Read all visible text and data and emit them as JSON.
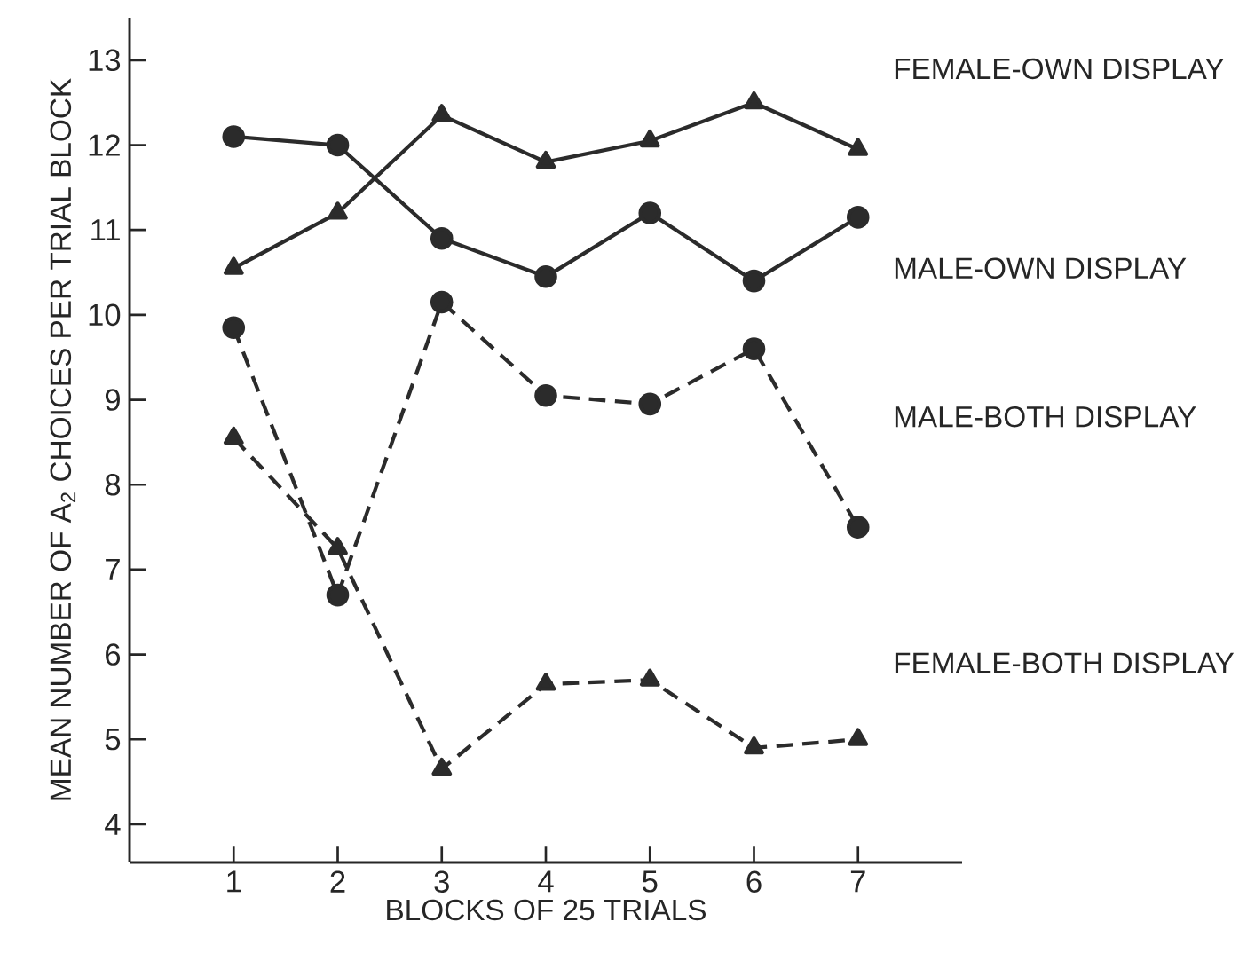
{
  "chart_data": {
    "type": "line",
    "xlabel": "BLOCKS OF 25 TRIALS",
    "ylabel": "MEAN NUMBER OF A$_{2}$ CHOICES PER TRIAL BLOCK",
    "x": [
      1,
      2,
      3,
      4,
      5,
      6,
      7
    ],
    "xlim": [
      0,
      8
    ],
    "xticks": [
      1,
      2,
      3,
      4,
      5,
      6,
      7
    ],
    "ylim": [
      3.55,
      13.5
    ],
    "yticks": [
      4,
      5,
      6,
      7,
      8,
      9,
      10,
      11,
      12,
      13
    ],
    "grid": false,
    "legend": false,
    "series": [
      {
        "name": "FEMALE-OWN DISPLAY",
        "color": "#2b2b2b",
        "marker": "triangle",
        "line_style": "solid",
        "values": [
          10.55,
          11.2,
          12.35,
          11.8,
          12.05,
          12.5,
          11.95
        ]
      },
      {
        "name": "MALE-OWN DISPLAY",
        "color": "#2b2b2b",
        "marker": "circle",
        "line_style": "solid",
        "values": [
          12.1,
          12.0,
          10.9,
          10.45,
          11.2,
          10.4,
          11.15
        ]
      },
      {
        "name": "MALE-BOTH DISPLAY",
        "color": "#2b2b2b",
        "marker": "circle",
        "line_style": "dashed",
        "values": [
          9.85,
          6.7,
          10.15,
          9.05,
          8.95,
          9.6,
          7.5
        ]
      },
      {
        "name": "FEMALE-BOTH DISPLAY",
        "color": "#2b2b2b",
        "marker": "triangle",
        "line_style": "dashed",
        "values": [
          8.55,
          7.25,
          4.65,
          5.65,
          5.7,
          4.9,
          5.0
        ]
      }
    ]
  }
}
